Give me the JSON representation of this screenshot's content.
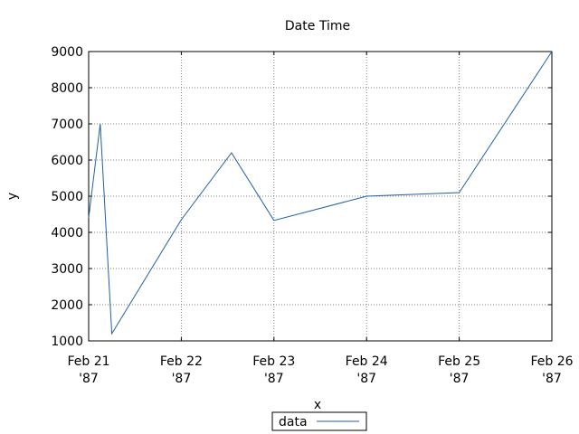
{
  "chart_data": {
    "type": "line",
    "title": "Date Time",
    "xlabel": "x",
    "ylabel": "y",
    "x": [
      "1987-02-21T00:00",
      "1987-02-21T03:00",
      "1987-02-21T06:00",
      "1987-02-22T00:00",
      "1987-02-22T13:00",
      "1987-02-23T00:00",
      "1987-02-24T00:00",
      "1987-02-25T00:00",
      "1987-02-26T00:00"
    ],
    "series": [
      {
        "name": "data",
        "color": "#1f5fa0",
        "values": [
          4400,
          7000,
          1200,
          4350,
          6200,
          4330,
          5000,
          5100,
          9000
        ]
      }
    ],
    "xlim": [
      "1987-02-21T00:00",
      "1987-02-26T00:00"
    ],
    "ylim": [
      1000,
      9000
    ],
    "xticks": [
      {
        "line1": "Feb 21",
        "line2": "'87"
      },
      {
        "line1": "Feb 22",
        "line2": "'87"
      },
      {
        "line1": "Feb 23",
        "line2": "'87"
      },
      {
        "line1": "Feb 24",
        "line2": "'87"
      },
      {
        "line1": "Feb 25",
        "line2": "'87"
      },
      {
        "line1": "Feb 26",
        "line2": "'87"
      }
    ],
    "yticks": [
      "1000",
      "2000",
      "3000",
      "4000",
      "5000",
      "6000",
      "7000",
      "8000",
      "9000"
    ],
    "grid": true,
    "legend_position": "bottom-center"
  }
}
